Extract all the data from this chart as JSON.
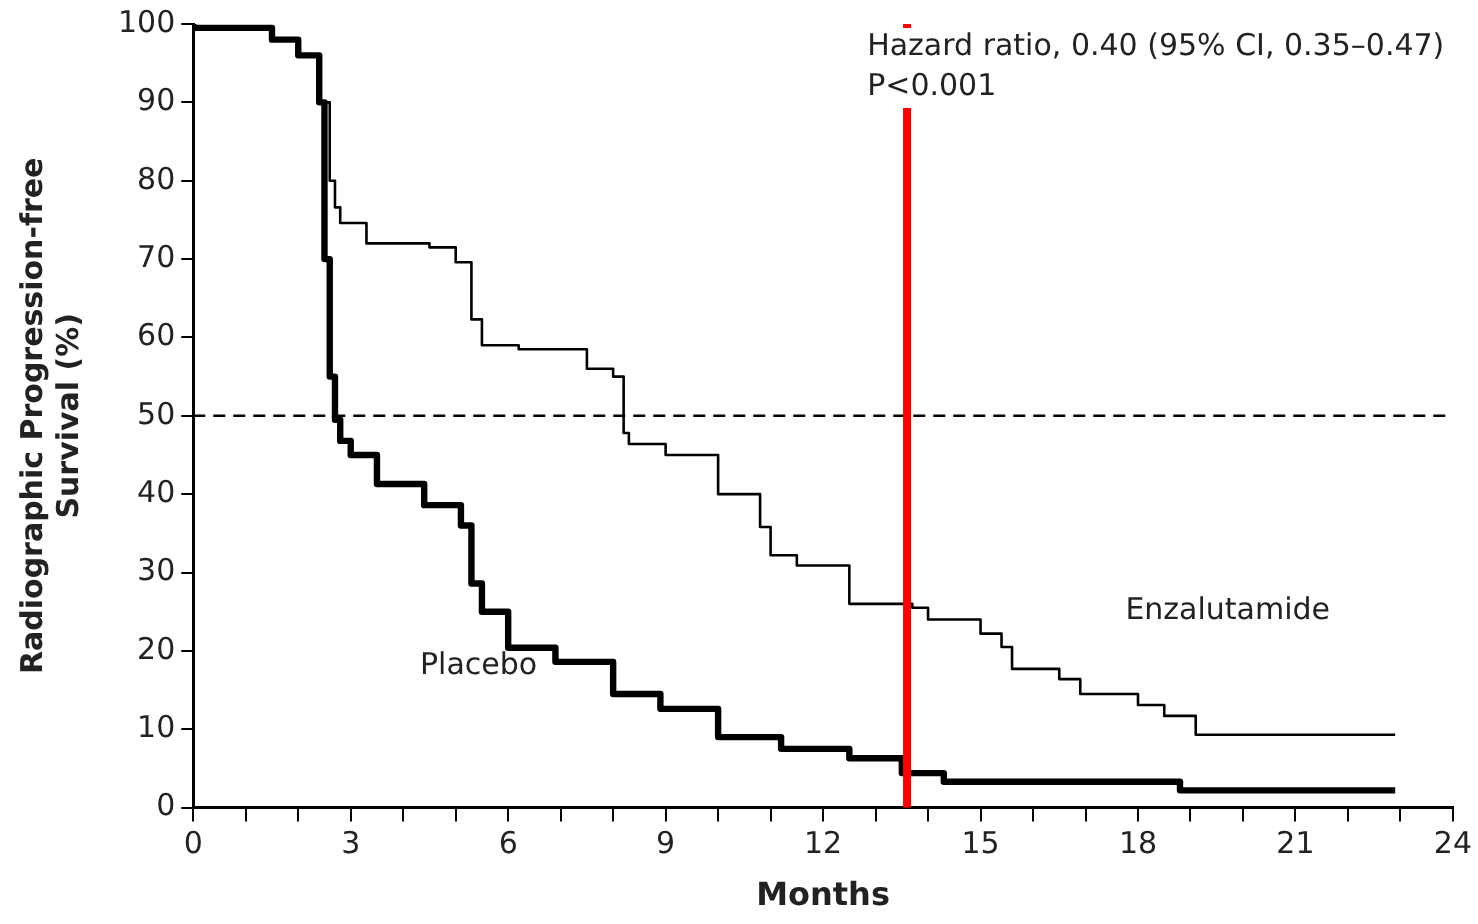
{
  "chart_data": {
    "type": "step",
    "xlabel": "Months",
    "ylabel": "Radiographic Progression-free Survival (%)",
    "annotations": [
      "Hazard ratio, 0.40 (95% CI, 0.35–0.47)",
      "P<0.001"
    ],
    "xlim": [
      0,
      24
    ],
    "xticks": [
      0,
      {
        "value": 1,
        "label": null
      },
      {
        "value": 2,
        "label": null
      },
      3,
      {
        "value": 4,
        "label": null
      },
      {
        "value": 5,
        "label": null
      },
      6,
      {
        "value": 7,
        "label": null
      },
      {
        "value": 8,
        "label": null
      },
      9,
      {
        "value": 10,
        "label": null
      },
      {
        "value": 11,
        "label": null
      },
      12,
      {
        "value": 13,
        "label": null
      },
      {
        "value": 14,
        "label": null
      },
      15,
      {
        "value": 16,
        "label": null
      },
      {
        "value": 17,
        "label": null
      },
      18,
      {
        "value": 19,
        "label": null
      },
      {
        "value": 20,
        "label": null
      },
      21,
      {
        "value": 22,
        "label": null
      },
      {
        "value": 23,
        "label": null
      },
      24
    ],
    "ylim": [
      0,
      100
    ],
    "yticks": [
      0,
      10,
      20,
      30,
      40,
      50,
      60,
      70,
      80,
      90,
      100
    ],
    "grid": false,
    "legend": false,
    "marker": "none",
    "series": [
      {
        "name": "Enzalutamide",
        "color": "#000000",
        "x": [
          0,
          1.5,
          2,
          2.4,
          2.6,
          2.7,
          2.8,
          3.3,
          4.5,
          5,
          5.3,
          5.5,
          6.2,
          7.5,
          8,
          8.2,
          8.3,
          9,
          10,
          10.8,
          11,
          11.5,
          12.5,
          13.7,
          14,
          15,
          15.4,
          15.6,
          16.5,
          16.9,
          18,
          18.5,
          19.1,
          19.3,
          22.9
        ],
        "values": [
          100,
          99.5,
          98,
          96,
          90,
          80,
          76.6,
          74.6,
          72,
          71.5,
          69.6,
          62.3,
          59,
          58.5,
          56,
          55,
          47.8,
          46.4,
          45,
          40,
          35.8,
          32.2,
          30.9,
          26,
          25.5,
          24,
          22.2,
          20.5,
          17.7,
          16.4,
          14.5,
          13.1,
          11.7,
          9.3,
          9.3
        ]
      },
      {
        "name": "Placebo",
        "color": "#000000",
        "x": [
          0,
          1.5,
          2,
          2.4,
          2.5,
          2.6,
          2.7,
          2.8,
          3,
          3.5,
          4.4,
          5.1,
          5.3,
          5.5,
          6,
          6.9,
          8,
          8.9,
          10,
          11.2,
          12.5,
          13.5,
          14.3,
          15.2,
          18.8,
          18.9,
          22.9
        ],
        "values": [
          100,
          99.5,
          98,
          96,
          90,
          70,
          55,
          49.5,
          46.8,
          45,
          41.3,
          38.6,
          36,
          28.6,
          25,
          20.4,
          18.6,
          14.5,
          12.6,
          9,
          7.5,
          6.3,
          4.4,
          3.3,
          3.3,
          2.2,
          2.2
        ]
      }
    ],
    "ref_lines": [
      {
        "axis": "y",
        "value": 50,
        "color": "#000000",
        "line_style": "dashed"
      },
      {
        "axis": "x",
        "value": 13.6,
        "color": "#ff0000",
        "line_style": "solid"
      }
    ]
  }
}
